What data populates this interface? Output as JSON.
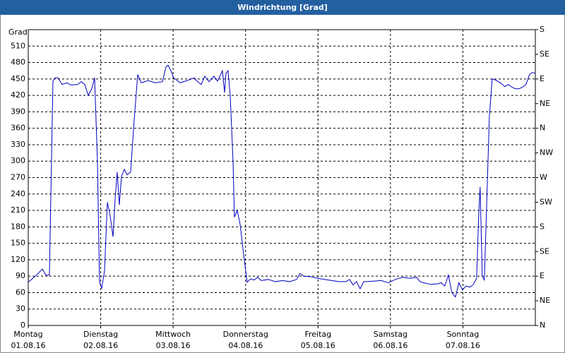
{
  "chart_data": {
    "type": "line",
    "title": "Windrichtung [Grad]",
    "ylabel": "Grad",
    "xlim": [
      0,
      7
    ],
    "xticks": [
      {
        "value": 0,
        "label": "Montag",
        "date": "01.08.16"
      },
      {
        "value": 1,
        "label": "Dienstag",
        "date": "02.08.16"
      },
      {
        "value": 2,
        "label": "Mittwoch",
        "date": "03.08.16"
      },
      {
        "value": 3,
        "label": "Donnerstag",
        "date": "04.08.16"
      },
      {
        "value": 4,
        "label": "Freitag",
        "date": "05.08.16"
      },
      {
        "value": 5,
        "label": "Samstag",
        "date": "06.08.16"
      },
      {
        "value": 6,
        "label": "Sonntag",
        "date": "07.08.16"
      }
    ],
    "ylim": [
      0,
      540
    ],
    "yticks": [
      0,
      30,
      60,
      90,
      120,
      150,
      180,
      210,
      240,
      270,
      300,
      330,
      360,
      390,
      420,
      450,
      480,
      510
    ],
    "y2lim": [
      0,
      540
    ],
    "y2ticks": [
      {
        "value": 0,
        "label": "N"
      },
      {
        "value": 45,
        "label": "NE"
      },
      {
        "value": 90,
        "label": "E"
      },
      {
        "value": 135,
        "label": "SE"
      },
      {
        "value": 180,
        "label": "S"
      },
      {
        "value": 225,
        "label": "SW"
      },
      {
        "value": 270,
        "label": "W"
      },
      {
        "value": 315,
        "label": "NW"
      },
      {
        "value": 360,
        "label": "N"
      },
      {
        "value": 405,
        "label": "NE"
      },
      {
        "value": 450,
        "label": "E"
      },
      {
        "value": 495,
        "label": "SE"
      },
      {
        "value": 540,
        "label": "S"
      }
    ],
    "grid": true,
    "series": [
      {
        "color": "#0000c0",
        "x": [
          0,
          0.097,
          0.195,
          0.244,
          0.292,
          0.341,
          0.37,
          0.409,
          0.468,
          0.536,
          0.585,
          0.682,
          0.731,
          0.78,
          0.828,
          0.877,
          0.916,
          0.955,
          0.984,
          1.014,
          1.053,
          1.092,
          1.131,
          1.17,
          1.199,
          1.228,
          1.257,
          1.287,
          1.326,
          1.365,
          1.413,
          1.462,
          1.511,
          1.559,
          1.657,
          1.754,
          1.852,
          1.901,
          1.93,
          1.969,
          2.008,
          2.096,
          2.193,
          2.29,
          2.339,
          2.388,
          2.437,
          2.495,
          2.563,
          2.612,
          2.68,
          2.71,
          2.729,
          2.758,
          2.788,
          2.827,
          2.846,
          2.885,
          2.924,
          2.973,
          3.021,
          3.07,
          3.119,
          3.168,
          3.216,
          3.314,
          3.411,
          3.509,
          3.606,
          3.704,
          3.752,
          3.801,
          3.899,
          3.996,
          4.094,
          4.191,
          4.288,
          4.386,
          4.435,
          4.483,
          4.532,
          4.581,
          4.63,
          4.678,
          4.776,
          4.873,
          4.971,
          5.068,
          5.166,
          5.263,
          5.361,
          5.409,
          5.458,
          5.556,
          5.653,
          5.702,
          5.75,
          5.799,
          5.848,
          5.897,
          5.945,
          5.994,
          6.043,
          6.092,
          6.14,
          6.189,
          6.218,
          6.238,
          6.267,
          6.296,
          6.335,
          6.365,
          6.404,
          6.452,
          6.53,
          6.579,
          6.628,
          6.677,
          6.725,
          6.774,
          6.823,
          6.871,
          6.92,
          6.959,
          6.998
        ],
        "values": [
          79,
          90,
          103,
          92,
          92,
          446,
          452,
          452,
          440,
          443,
          439,
          440,
          445,
          440,
          420,
          432,
          452,
          300,
          79,
          68,
          100,
          225,
          200,
          162,
          230,
          280,
          220,
          272,
          285,
          275,
          280,
          375,
          458,
          443,
          447,
          443,
          445,
          472,
          475,
          465,
          452,
          443,
          447,
          452,
          445,
          440,
          455,
          445,
          455,
          446,
          465,
          425,
          460,
          465,
          420,
          300,
          198,
          210,
          185,
          130,
          79,
          85,
          83,
          88,
          82,
          84,
          80,
          82,
          80,
          84,
          95,
          90,
          89,
          86,
          84,
          82,
          80,
          80,
          84,
          74,
          80,
          67,
          80,
          80,
          81,
          82,
          78,
          84,
          88,
          86,
          88,
          80,
          78,
          75,
          76,
          78,
          72,
          92,
          60,
          52,
          78,
          65,
          72,
          70,
          74,
          86,
          200,
          253,
          90,
          83,
          250,
          380,
          450,
          448,
          442,
          436,
          440,
          435,
          432,
          432,
          435,
          440,
          458,
          462,
          460
        ]
      }
    ]
  }
}
